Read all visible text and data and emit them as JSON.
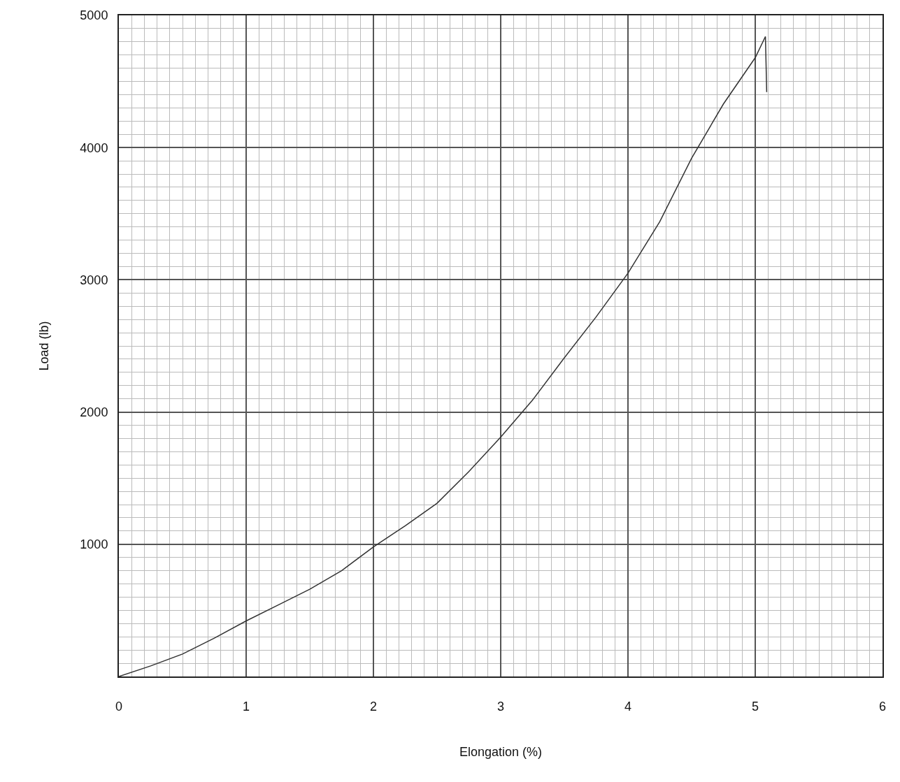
{
  "chart_data": {
    "type": "line",
    "xlabel": "Elongation (%)",
    "ylabel": "Load (lb)",
    "x": [
      0,
      0.25,
      0.5,
      0.75,
      1,
      1.25,
      1.5,
      1.75,
      2,
      2.25,
      2.5,
      2.75,
      3,
      3.25,
      3.5,
      3.75,
      4,
      4.25,
      4.5,
      4.75,
      5,
      5.08,
      5.09
    ],
    "series": [
      {
        "color": "#333333",
        "values": [
          0,
          80,
          170,
          290,
          420,
          540,
          660,
          800,
          980,
          1140,
          1310,
          1550,
          1810,
          2090,
          2410,
          2720,
          3050,
          3440,
          3920,
          4330,
          4680,
          4840,
          4420
        ]
      }
    ],
    "xlim": [
      0,
      6
    ],
    "ylim": [
      0,
      5000
    ],
    "xticks": [
      0,
      1,
      2,
      3,
      4,
      5,
      6
    ],
    "yticks": [
      {
        "value": 0,
        "label": null
      },
      1000,
      2000,
      3000,
      4000,
      5000
    ],
    "grid": true,
    "legend": false,
    "marker": "none",
    "line_style": "solid"
  }
}
